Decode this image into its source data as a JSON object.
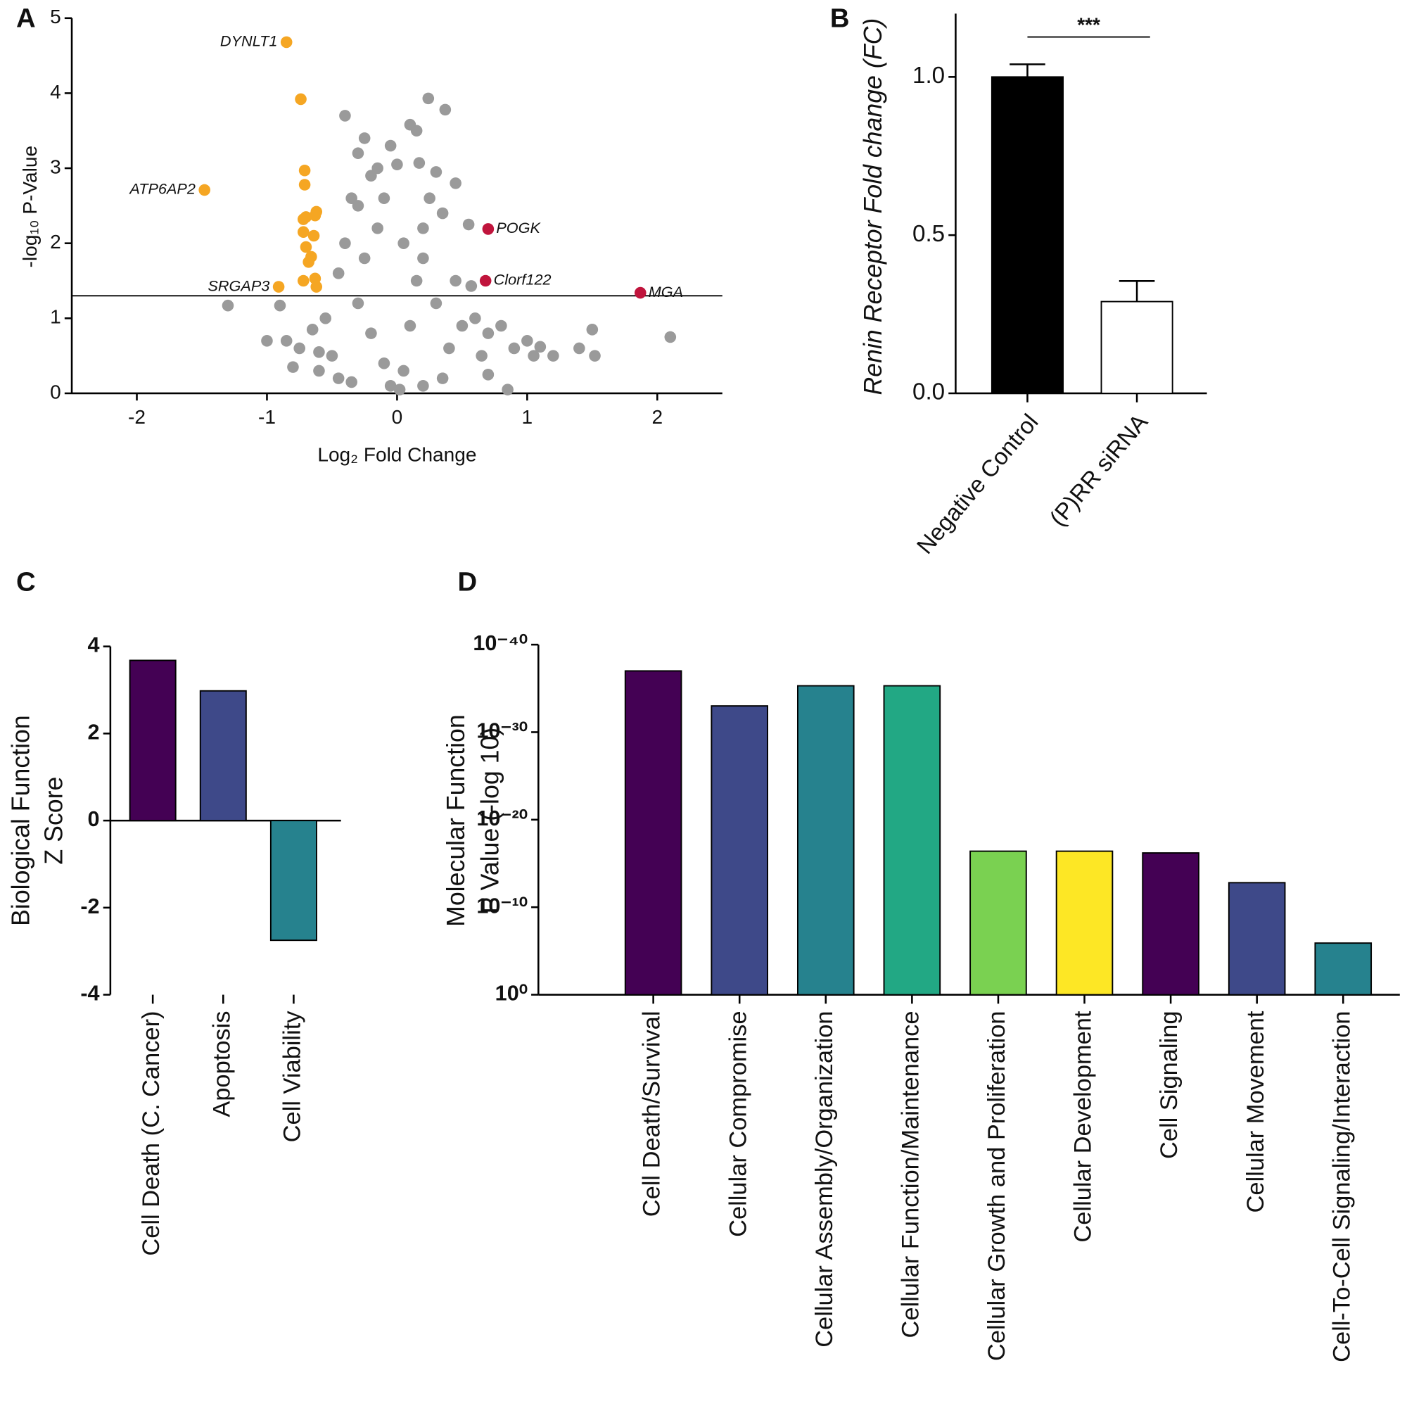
{
  "chart_data": [
    {
      "type": "scatter",
      "label": "A",
      "xlabel": "Log₂ Fold Change",
      "ylabel": "-log₁₀ P-Value",
      "xlim": [
        -2.5,
        2.5
      ],
      "ylim": [
        0,
        5
      ],
      "xticks": [
        -2,
        -1,
        0,
        1,
        2
      ],
      "yticks": [
        0,
        1,
        2,
        3,
        4,
        5
      ],
      "threshold": 1.3,
      "series": [
        {
          "color": "#9a9a9a",
          "x": [
            -1.3,
            -1.0,
            -0.9,
            -0.85,
            -0.8,
            -0.75,
            -0.65,
            -0.6,
            -0.55,
            -0.5,
            -0.45,
            -0.4,
            -0.4,
            -0.35,
            -0.3,
            -0.25,
            -0.2,
            -0.15,
            -0.1,
            -0.05,
            0.0,
            -0.3,
            -0.2,
            -0.1,
            -0.05,
            0.02,
            0.05,
            0.1,
            0.15,
            0.2,
            0.25,
            0.1,
            0.15,
            0.24,
            0.37,
            0.17,
            0.3,
            0.35,
            0.3,
            0.4,
            0.45,
            0.5,
            0.55,
            0.57,
            0.6,
            0.65,
            0.7,
            0.8,
            0.85,
            0.9,
            1.0,
            1.05,
            1.1,
            1.2,
            1.4,
            1.52,
            1.5,
            2.1,
            -0.35,
            -0.45,
            0.2,
            0.35,
            -0.6,
            0.7,
            -0.25,
            0.2,
            -0.15,
            0.05,
            -0.3,
            0.45
          ],
          "y": [
            1.17,
            0.7,
            1.17,
            0.7,
            0.35,
            0.6,
            0.85,
            0.3,
            1.0,
            0.5,
            1.6,
            2.0,
            3.7,
            2.6,
            3.2,
            3.4,
            2.9,
            3.0,
            2.6,
            3.3,
            3.05,
            1.2,
            0.8,
            0.4,
            0.1,
            0.05,
            0.3,
            0.9,
            1.5,
            2.2,
            2.6,
            3.58,
            3.5,
            3.93,
            3.78,
            3.07,
            2.95,
            2.4,
            1.2,
            0.6,
            1.5,
            0.9,
            2.25,
            1.43,
            1.0,
            0.5,
            0.25,
            0.9,
            0.05,
            0.6,
            0.7,
            0.5,
            0.62,
            0.5,
            0.6,
            0.5,
            0.85,
            0.75,
            0.15,
            0.2,
            0.1,
            0.2,
            0.55,
            0.8,
            1.8,
            1.8,
            2.2,
            2.0,
            2.5,
            2.8
          ]
        },
        {
          "color": "#f5a623",
          "x": [
            -0.85,
            -0.74,
            -1.48,
            -0.71,
            -0.71,
            -0.7,
            -0.72,
            -0.62,
            -0.63,
            -0.72,
            -0.64,
            -0.7,
            -0.66,
            -0.68,
            -0.63,
            -0.72,
            -0.62,
            -0.91
          ],
          "y": [
            4.68,
            3.92,
            2.71,
            2.97,
            2.78,
            2.35,
            2.32,
            2.42,
            2.37,
            2.15,
            2.1,
            1.95,
            1.82,
            1.75,
            1.53,
            1.5,
            1.42,
            1.42
          ]
        },
        {
          "color": "#c0143c",
          "x": [
            0.7,
            0.68,
            1.87
          ],
          "y": [
            2.19,
            1.5,
            1.34
          ]
        }
      ],
      "annotations": [
        {
          "text": "DYNLT1",
          "x": -0.85,
          "y": 4.68
        },
        {
          "text": "ATP6AP2",
          "x": -1.48,
          "y": 2.71
        },
        {
          "text": "SRGAP3",
          "x": -0.91,
          "y": 1.42
        },
        {
          "text": "POGK",
          "x": 0.7,
          "y": 2.19
        },
        {
          "text": "Clorf122",
          "x": 0.68,
          "y": 1.5
        },
        {
          "text": "MGA",
          "x": 1.87,
          "y": 1.34
        }
      ]
    },
    {
      "type": "bar",
      "label": "B",
      "ylabel": [
        "Renin Receptor Fold change (FC)"
      ],
      "categories": [
        "Negative Control",
        "(P)RR siRNA"
      ],
      "values": [
        1.0,
        0.29
      ],
      "errors": [
        0.04,
        0.065
      ],
      "colors": [
        "#000000",
        "#ffffff"
      ],
      "ylim": [
        0,
        1.2
      ],
      "yticks": [
        {
          "value": 0,
          "label": "0.0"
        },
        0.5,
        {
          "value": 1,
          "label": "1.0"
        }
      ],
      "significance": "***"
    },
    {
      "type": "bar",
      "label": "C",
      "ylabel": [
        "Biological Function",
        "Z Score"
      ],
      "categories": [
        "Cell Death (C. Cancer)",
        "Apoptosis",
        "Cell Viability"
      ],
      "values": [
        3.68,
        2.98,
        -2.75
      ],
      "colors": [
        "#440154",
        "#3e4989",
        "#26828e"
      ],
      "ylim": [
        -4,
        4
      ],
      "yticks": [
        -4,
        -2,
        0,
        2,
        4
      ]
    },
    {
      "type": "bar",
      "label": "D",
      "ylabel": [
        "Molecular Function",
        "P Value (-log 10)"
      ],
      "categories": [
        "Cell Death/Survival",
        "Cellular Compromise",
        "Cellular Assembly/Organization",
        "Cellular Function/Maintenance",
        "Cellular Growth and Proliferation",
        "Cellular Development",
        "Cell Signaling",
        "Cellular Movement",
        "Cell-To-Cell Signaling/Interaction"
      ],
      "values": [
        37.0,
        33.0,
        35.3,
        35.3,
        16.4,
        16.4,
        16.2,
        12.8,
        5.9
      ],
      "colors": [
        "#440154",
        "#3e4989",
        "#26828e",
        "#22a884",
        "#7ad151",
        "#fde725",
        "#440154",
        "#3e4989",
        "#26828e"
      ],
      "ylim": [
        0,
        40
      ],
      "yticks": [
        {
          "value": 0,
          "label": "10⁰"
        },
        {
          "value": 10,
          "label": "10⁻¹⁰"
        },
        {
          "value": 20,
          "label": "10⁻²⁰"
        },
        {
          "value": 30,
          "label": "10⁻³⁰"
        },
        {
          "value": 40,
          "label": "10⁻⁴⁰"
        }
      ]
    }
  ]
}
